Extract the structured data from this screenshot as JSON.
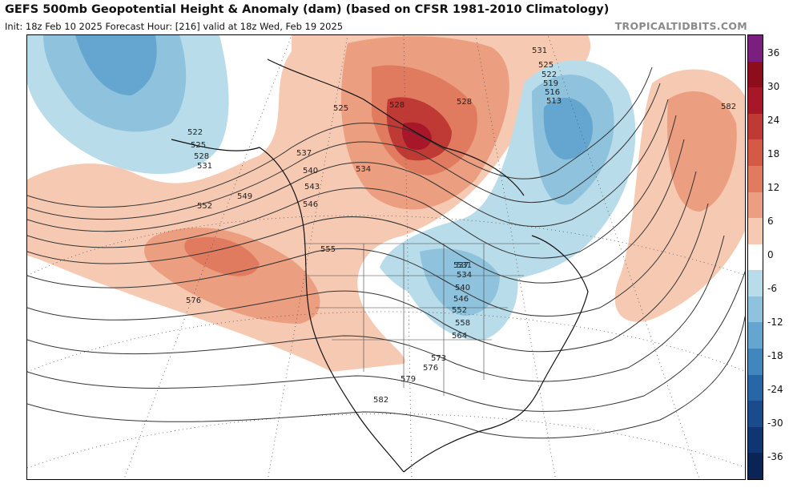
{
  "header": {
    "title": "GEFS 500mb Geopotential Height & Anomaly (dam) (based on CFSR 1981-2010 Climatology)",
    "subtitle": "Init: 18z Feb 10 2025   Forecast Hour: [216]   valid at 18z Wed, Feb 19 2025",
    "brand": "TROPICALTIDBITS.COM"
  },
  "colorbar": {
    "labels": [
      "36",
      "30",
      "24",
      "18",
      "12",
      "6",
      "0",
      "-6",
      "-12",
      "-18",
      "-24",
      "-30",
      "-36"
    ],
    "colors": [
      "#7b1f7e",
      "#8e0d1c",
      "#a8162a",
      "#c03a35",
      "#d45a45",
      "#e07b5f",
      "#ec9e80",
      "#f6c9b3",
      "#ffffff",
      "#b9dcea",
      "#8fc3dd",
      "#64a6cf",
      "#3f87bd",
      "#2767a7",
      "#1a4b8d",
      "#0f3573",
      "#0b2456"
    ]
  },
  "contour_labels": {
    "values": [
      "531",
      "525",
      "522",
      "519",
      "516",
      "513",
      "582",
      "522",
      "525",
      "528",
      "531",
      "525",
      "528",
      "528",
      "537",
      "534",
      "540",
      "543",
      "546",
      "549",
      "552",
      "555",
      "531",
      "534",
      "537",
      "540",
      "546",
      "552",
      "558",
      "564",
      "576",
      "573",
      "576",
      "579",
      "582"
    ]
  },
  "colors": {
    "positive_anomaly": "#d45a45",
    "negative_anomaly": "#3f87bd",
    "land": "#ffffff",
    "border": "#000000"
  }
}
